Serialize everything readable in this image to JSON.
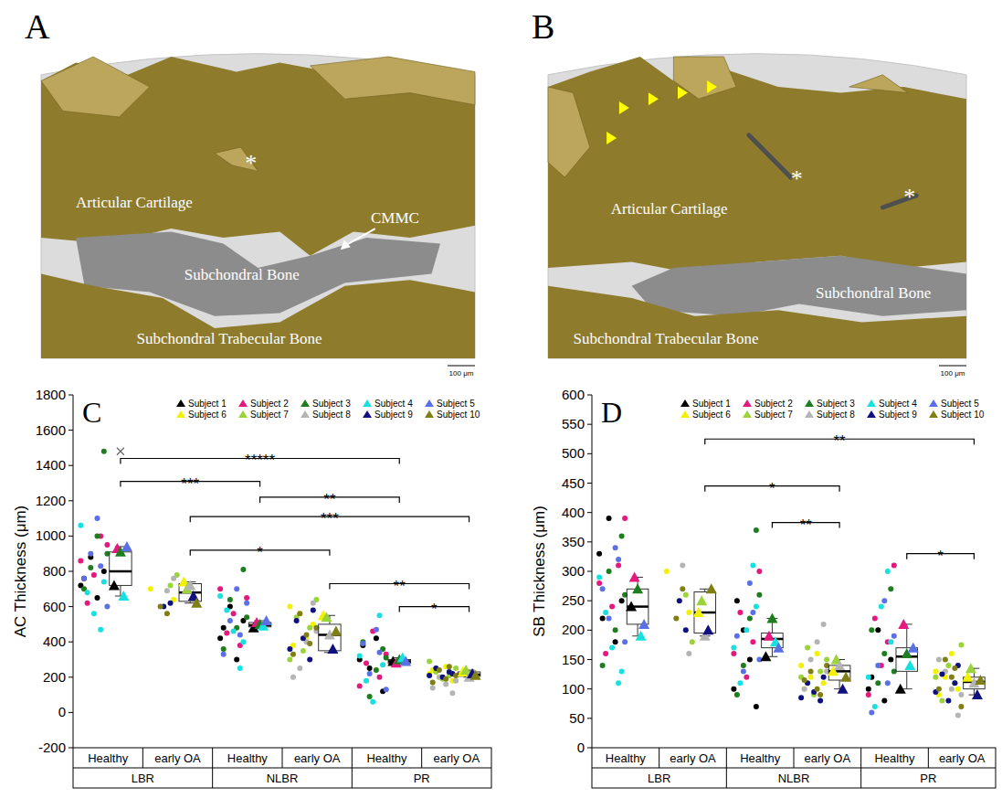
{
  "figure": {
    "panels": [
      {
        "letter": "A",
        "labels": {
          "cartilage": "Articular Cartilage",
          "bone": "Subchondral Bone",
          "trabecular": "Subchondral Trabecular Bone",
          "cmmc": "CMMC"
        },
        "asterisks": [
          "*"
        ],
        "scale_bar": "100 μm"
      },
      {
        "letter": "B",
        "labels": {
          "cartilage": "Articular Cartilage",
          "bone": "Subchondral Bone",
          "trabecular": "Subchondral Trabecular Bone"
        },
        "asterisks": [
          "*",
          "*"
        ],
        "scale_bar": "100 μm"
      }
    ]
  },
  "chart_data": [
    {
      "type": "box",
      "title": "C",
      "y_label": "AC Thickness (μm)",
      "ylim": [
        -200,
        1800
      ],
      "yticks": [
        -200,
        0,
        200,
        400,
        600,
        800,
        1000,
        1200,
        1400,
        1600,
        1800
      ],
      "categories": [
        "Healthy",
        "early OA",
        "Healthy",
        "early OA",
        "Healthy",
        "early OA"
      ],
      "regions": [
        "LBR",
        "NLBR",
        "PR"
      ],
      "legend": "upper right",
      "subjects": [
        {
          "name": "Subject 1",
          "color": "#000000"
        },
        {
          "name": "Subject 2",
          "color": "#e3197d"
        },
        {
          "name": "Subject 3",
          "color": "#1e7d1e"
        },
        {
          "name": "Subject 4",
          "color": "#19e0e0"
        },
        {
          "name": "Subject 5",
          "color": "#5b6fe6"
        },
        {
          "name": "Subject 6",
          "color": "#f2f200"
        },
        {
          "name": "Subject 7",
          "color": "#9ad43a"
        },
        {
          "name": "Subject 8",
          "color": "#b4b4b4"
        },
        {
          "name": "Subject 9",
          "color": "#10107f"
        },
        {
          "name": "Subject 10",
          "color": "#7f7f14"
        }
      ],
      "groups": [
        {
          "subjects": [
            1,
            2,
            3,
            4,
            5
          ],
          "points": [
            [
              720,
              800,
              650,
              880,
              760
            ],
            [
              950,
              1000,
              780,
              620,
              860
            ],
            [
              1480,
              1000,
              820,
              700,
              900
            ],
            [
              470,
              560,
              680,
              1060,
              740
            ],
            [
              1100,
              900,
              760,
              600,
              830
            ]
          ],
          "means": [
            720,
            930,
            910,
            660,
            940
          ],
          "box": {
            "low": 660,
            "q1": 720,
            "median": 800,
            "q3": 910,
            "high": 940,
            "outliers": [
              1480
            ]
          }
        },
        {
          "subjects": [
            6,
            7,
            8,
            9,
            10
          ],
          "points": [
            [
              700,
              640
            ],
            [
              780,
              720
            ],
            [
              760,
              690
            ],
            [
              620,
              600
            ],
            [
              560,
              600
            ]
          ],
          "means": [
            740,
            700,
            720,
            660,
            620
          ],
          "box": {
            "low": 620,
            "q1": 630,
            "median": 680,
            "q3": 730,
            "high": 740,
            "outliers": []
          }
        },
        {
          "subjects": [
            1,
            2,
            3,
            4,
            5
          ],
          "points": [
            [
              420,
              520,
              300,
              600,
              480
            ],
            [
              650,
              380,
              560,
              450,
              700
            ],
            [
              810,
              480,
              640,
              360,
              540
            ],
            [
              250,
              460,
              580,
              660,
              400
            ],
            [
              700,
              520,
              330,
              620,
              440
            ]
          ],
          "means": [
            480,
            510,
            500,
            490,
            520
          ],
          "box": {
            "low": 480,
            "q1": 485,
            "median": 495,
            "q3": 510,
            "high": 520,
            "outliers": []
          }
        },
        {
          "subjects": [
            6,
            7,
            8,
            9,
            10
          ],
          "points": [
            [
              600,
              500,
              420,
              560,
              380
            ],
            [
              640,
              480,
              350,
              540,
              300
            ],
            [
              620,
              400,
              250,
              200,
              460
            ],
            [
              300,
              420,
              520,
              360,
              580
            ],
            [
              440,
              560,
              330,
              480,
              390
            ]
          ],
          "means": [
            550,
            540,
            440,
            360,
            460
          ],
          "box": {
            "low": 340,
            "q1": 350,
            "median": 440,
            "q3": 500,
            "high": 550,
            "outliers": []
          }
        },
        {
          "subjects": [
            1,
            2,
            3,
            4,
            5
          ],
          "points": [
            [
              300,
              120,
              420,
              250,
              380
            ],
            [
              330,
              200,
              460,
              280,
              150
            ],
            [
              360,
              240,
              90,
              400,
              310
            ],
            [
              550,
              60,
              180,
              320,
              270
            ],
            [
              470,
              220,
              390,
              130,
              340
            ]
          ],
          "means": [
            290,
            280,
            300,
            310,
            290
          ],
          "box": {
            "low": 270,
            "q1": 280,
            "median": 290,
            "q3": 300,
            "high": 310,
            "outliers": []
          }
        },
        {
          "subjects": [
            6,
            7,
            8,
            9,
            10
          ],
          "points": [
            [
              220,
              180,
              260,
              200,
              240
            ],
            [
              250,
              210,
              190,
              230,
              290
            ],
            [
              110,
              160,
              200,
              140,
              180
            ],
            [
              230,
              200,
              250,
              210,
              220
            ],
            [
              190,
              240,
              170,
              210,
              260
            ]
          ],
          "means": [
            230,
            240,
            200,
            220,
            210
          ],
          "box": {
            "low": 200,
            "q1": 205,
            "median": 215,
            "q3": 230,
            "high": 240,
            "outliers": []
          }
        }
      ],
      "brackets": [
        {
          "from": 0,
          "to": 4,
          "y": 1440,
          "label": "*****"
        },
        {
          "from": 0,
          "to": 2,
          "y": 1310,
          "label": "***"
        },
        {
          "from": 2,
          "to": 4,
          "y": 1220,
          "label": "**"
        },
        {
          "from": 1,
          "to": 5,
          "y": 1110,
          "label": "***"
        },
        {
          "from": 1,
          "to": 3,
          "y": 920,
          "label": "*"
        },
        {
          "from": 3,
          "to": 5,
          "y": 730,
          "label": "**"
        },
        {
          "from": 4,
          "to": 5,
          "y": 600,
          "label": "*"
        }
      ]
    },
    {
      "type": "box",
      "title": "D",
      "y_label": "SB Thickness (μm)",
      "ylim": [
        0,
        600
      ],
      "yticks": [
        0,
        50,
        100,
        150,
        200,
        250,
        300,
        350,
        400,
        450,
        500,
        550,
        600
      ],
      "categories": [
        "Healthy",
        "early OA",
        "Healthy",
        "early OA",
        "Healthy",
        "early OA"
      ],
      "regions": [
        "LBR",
        "NLBR",
        "PR"
      ],
      "legend": "upper right",
      "subjects": [
        {
          "name": "Subject 1",
          "color": "#000000"
        },
        {
          "name": "Subject 2",
          "color": "#e3197d"
        },
        {
          "name": "Subject 3",
          "color": "#1e7d1e"
        },
        {
          "name": "Subject 4",
          "color": "#19e0e0"
        },
        {
          "name": "Subject 5",
          "color": "#5b6fe6"
        },
        {
          "name": "Subject 6",
          "color": "#f2f200"
        },
        {
          "name": "Subject 7",
          "color": "#9ad43a"
        },
        {
          "name": "Subject 8",
          "color": "#b4b4b4"
        },
        {
          "name": "Subject 9",
          "color": "#10107f"
        },
        {
          "name": "Subject 10",
          "color": "#7f7f14"
        }
      ],
      "groups": [
        {
          "subjects": [
            1,
            2,
            3,
            4,
            5
          ],
          "points": [
            [
              330,
              250,
              180,
              390,
              220
            ],
            [
              390,
              310,
              240,
              160,
              280
            ],
            [
              360,
              200,
              300,
              140,
              260
            ],
            [
              110,
              170,
              230,
              290,
              130
            ],
            [
              340,
              220,
              270,
              180,
              320
            ]
          ],
          "means": [
            240,
            290,
            270,
            190,
            210
          ],
          "box": {
            "low": 190,
            "q1": 210,
            "median": 240,
            "q3": 270,
            "high": 290,
            "outliers": []
          }
        },
        {
          "subjects": [
            6,
            7,
            8,
            9,
            10
          ],
          "points": [
            [
              300,
              230
            ],
            [
              180,
              260
            ],
            [
              160,
              310
            ],
            [
              200,
              250
            ],
            [
              270,
              220
            ]
          ],
          "means": [
            230,
            250,
            190,
            200,
            270
          ],
          "box": {
            "low": 190,
            "q1": 195,
            "median": 230,
            "q3": 265,
            "high": 270,
            "outliers": []
          }
        },
        {
          "subjects": [
            1,
            2,
            3,
            4,
            5
          ],
          "points": [
            [
              100,
              70,
              150,
              200,
              250
            ],
            [
              300,
              180,
              120,
              230,
              160
            ],
            [
              370,
              220,
              140,
              90,
              260
            ],
            [
              310,
              200,
              110,
              170,
              240
            ],
            [
              280,
              130,
              190,
              150,
              230
            ]
          ],
          "means": [
            155,
            190,
            220,
            180,
            170
          ],
          "box": {
            "low": 155,
            "q1": 170,
            "median": 185,
            "q3": 195,
            "high": 220,
            "outliers": []
          }
        },
        {
          "subjects": [
            6,
            7,
            8,
            9,
            10
          ],
          "points": [
            [
              140,
              110,
              160,
              120,
              100
            ],
            [
              150,
              130,
              90,
              170,
              120
            ],
            [
              210,
              180,
              150,
              100,
              130
            ],
            [
              80,
              95,
              110,
              85,
              120
            ],
            [
              100,
              130,
              115,
              140,
              90
            ]
          ],
          "means": [
            130,
            150,
            140,
            100,
            120
          ],
          "box": {
            "low": 100,
            "q1": 115,
            "median": 130,
            "q3": 140,
            "high": 150,
            "outliers": []
          }
        },
        {
          "subjects": [
            1,
            2,
            3,
            4,
            5
          ],
          "points": [
            [
              100,
              150,
              80,
              200,
              120
            ],
            [
              310,
              180,
              140,
              220,
              90
            ],
            [
              270,
              160,
              110,
              200,
              130
            ],
            [
              300,
              240,
              70,
              120,
              180
            ],
            [
              250,
              140,
              60,
              190,
              110
            ]
          ],
          "means": [
            100,
            210,
            160,
            140,
            170
          ],
          "box": {
            "low": 100,
            "q1": 130,
            "median": 155,
            "q3": 170,
            "high": 210,
            "outliers": []
          }
        },
        {
          "subjects": [
            6,
            7,
            8,
            9,
            10
          ],
          "points": [
            [
              130,
              100,
              160,
              120,
              90
            ],
            [
              175,
              110,
              140,
              80,
              120
            ],
            [
              55,
              100,
              130,
              150,
              90
            ],
            [
              110,
              80,
              125,
              95,
              140
            ],
            [
              120,
              150,
              100,
              70,
              135
            ]
          ],
          "means": [
            120,
            135,
            110,
            90,
            115
          ],
          "box": {
            "low": 90,
            "q1": 100,
            "median": 112,
            "q3": 120,
            "high": 135,
            "outliers": []
          }
        }
      ],
      "brackets": [
        {
          "from": 1,
          "to": 5,
          "y": 525,
          "label": "**"
        },
        {
          "from": 1,
          "to": 3,
          "y": 445,
          "label": "*"
        },
        {
          "from": 2,
          "to": 3,
          "y": 383,
          "label": "**"
        },
        {
          "from": 4,
          "to": 5,
          "y": 330,
          "label": "*"
        }
      ]
    }
  ]
}
